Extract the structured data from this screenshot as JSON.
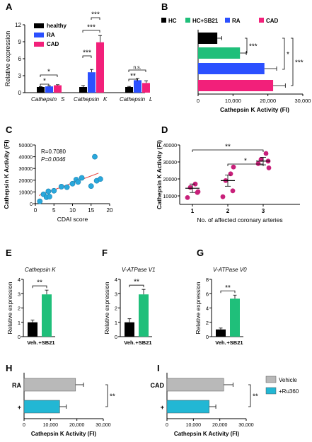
{
  "chart_data": [
    {
      "panel": "A",
      "type": "bar",
      "ylabel": "Relative expression",
      "ylim": [
        0,
        12
      ],
      "yticks": [
        0,
        3,
        6,
        9,
        12
      ],
      "categories": [
        "Cathepsin S",
        "Cathepsin K",
        "Cathepsin L"
      ],
      "series": [
        {
          "name": "healthy",
          "color": "#000000",
          "values": [
            1.0,
            1.0,
            1.0
          ],
          "errors": [
            0.05,
            0.25,
            0.1
          ]
        },
        {
          "name": "RA",
          "color": "#2b50ff",
          "values": [
            1.1,
            3.6,
            2.2
          ],
          "errors": [
            0.1,
            0.5,
            0.3
          ]
        },
        {
          "name": "CAD",
          "color": "#f2207a",
          "values": [
            1.3,
            8.9,
            1.7
          ],
          "errors": [
            0.1,
            1.2,
            0.4
          ]
        }
      ],
      "annotations": [
        "*",
        "*",
        "***",
        "***",
        "***",
        "**",
        "n.s."
      ]
    },
    {
      "panel": "B",
      "type": "bar",
      "orientation": "horizontal",
      "xlabel": "Cathepsin K Activity (FI)",
      "xlim": [
        0,
        30000
      ],
      "xtick_labels": [
        "0",
        "10,000",
        "20,000",
        "30,000"
      ],
      "categories": [
        "HC",
        "HC+SB21",
        "RA",
        "CAD"
      ],
      "colors": [
        "#000000",
        "#1fbf7a",
        "#2b50ff",
        "#f2207a"
      ],
      "values": [
        5500,
        12000,
        19000,
        21500
      ],
      "errors": [
        1300,
        1800,
        3500,
        3500
      ],
      "annotations": [
        "***",
        "*",
        "***"
      ]
    },
    {
      "panel": "C",
      "type": "scatter",
      "xlabel": "CDAI score",
      "ylabel": "Cathepsin K Activity (FI)",
      "xlim": [
        0,
        20
      ],
      "ylim": [
        0,
        50000
      ],
      "xticks": [
        0,
        5,
        10,
        15,
        20
      ],
      "ytick_labels": [
        "0",
        "10000",
        "20000",
        "30000",
        "40000",
        "50000"
      ],
      "x": [
        1.2,
        2.2,
        3.0,
        3.8,
        3.5,
        5.0,
        7.0,
        8.5,
        10.0,
        11.0,
        11.5,
        12.5,
        15.0,
        16.5,
        16.0,
        17.5
      ],
      "y": [
        2000,
        8000,
        5500,
        6000,
        10500,
        11000,
        14500,
        14000,
        17000,
        20500,
        18500,
        22000,
        15000,
        19500,
        40000,
        21000
      ],
      "annotations": [
        "R=0.7080",
        "P=0.0046"
      ],
      "fit": {
        "x": [
          1,
          17
        ],
        "y": [
          7000,
          26000
        ]
      }
    },
    {
      "panel": "D",
      "type": "scatter",
      "xlabel": "No. of affected coronary arteries",
      "ylabel": "Cathepsin K Activity (FI)",
      "ylim": [
        5000,
        40000
      ],
      "ytick_labels": [
        "10000",
        "20000",
        "30000",
        "40000"
      ],
      "categories": [
        "1",
        "2",
        "3"
      ],
      "points": [
        [
          9000,
          12000,
          15000,
          17000,
          12500
        ],
        [
          9500,
          13000,
          19000,
          23000,
          27000
        ],
        [
          29000,
          30500,
          31500,
          35000,
          26500
        ]
      ],
      "means": [
        14500,
        19000,
        30500
      ],
      "sem": [
        2500,
        3300,
        2200
      ],
      "annotations": [
        "**",
        "*"
      ]
    },
    {
      "panel": "E",
      "type": "bar",
      "title": "Cathepsin K",
      "ylabel": "Relative expression",
      "ylim": [
        0,
        4
      ],
      "yticks": [
        0,
        1,
        2,
        3,
        4
      ],
      "categories": [
        "Veh.",
        "+SB21"
      ],
      "colors": [
        "#000000",
        "#1fbf7a"
      ],
      "values": [
        1.0,
        2.95
      ],
      "errors": [
        0.15,
        0.3
      ],
      "annotations": [
        "**"
      ]
    },
    {
      "panel": "F",
      "type": "bar",
      "title": "V-ATPase V1",
      "ylabel": "Relative expression",
      "ylim": [
        0,
        4
      ],
      "yticks": [
        0,
        1,
        2,
        3,
        4
      ],
      "categories": [
        "Veh.",
        "+SB21"
      ],
      "colors": [
        "#000000",
        "#1fbf7a"
      ],
      "values": [
        1.0,
        2.95
      ],
      "errors": [
        0.25,
        0.35
      ],
      "annotations": [
        "**"
      ]
    },
    {
      "panel": "G",
      "type": "bar",
      "title": "V-ATPase V0",
      "ylabel": "Relative expression",
      "ylim": [
        0,
        8
      ],
      "yticks": [
        0,
        2,
        4,
        6,
        8
      ],
      "categories": [
        "Veh.",
        "+SB21"
      ],
      "colors": [
        "#000000",
        "#1fbf7a"
      ],
      "values": [
        1.0,
        5.3
      ],
      "errors": [
        0.2,
        0.5
      ],
      "annotations": [
        "**"
      ]
    },
    {
      "panel": "H",
      "type": "bar",
      "orientation": "horizontal",
      "xlabel": "Cathepsin K Activity (FI)",
      "xlim": [
        0,
        30000
      ],
      "xtick_labels": [
        "0",
        "10,000",
        "20,000",
        "30,000"
      ],
      "categories": [
        "RA",
        "+"
      ],
      "colors": [
        "#b9b9b9",
        "#22b7d4"
      ],
      "values": [
        19500,
        13500
      ],
      "errors": [
        3000,
        2500
      ],
      "annotations": [
        "**"
      ]
    },
    {
      "panel": "I",
      "type": "bar",
      "orientation": "horizontal",
      "xlabel": "Cathepsin K Activity (FI)",
      "xlim": [
        0,
        30000
      ],
      "xtick_labels": [
        "0",
        "10,000",
        "20,000",
        "30,000"
      ],
      "categories": [
        "CAD",
        "+"
      ],
      "colors": [
        "#b9b9b9",
        "#22b7d4"
      ],
      "values": [
        21500,
        16000
      ],
      "errors": [
        3500,
        2500
      ],
      "annotations": [
        "**"
      ],
      "legend": [
        {
          "name": "Vehicle",
          "color": "#b9b9b9"
        },
        {
          "name": "+Ru360",
          "color": "#22b7d4"
        }
      ]
    }
  ]
}
